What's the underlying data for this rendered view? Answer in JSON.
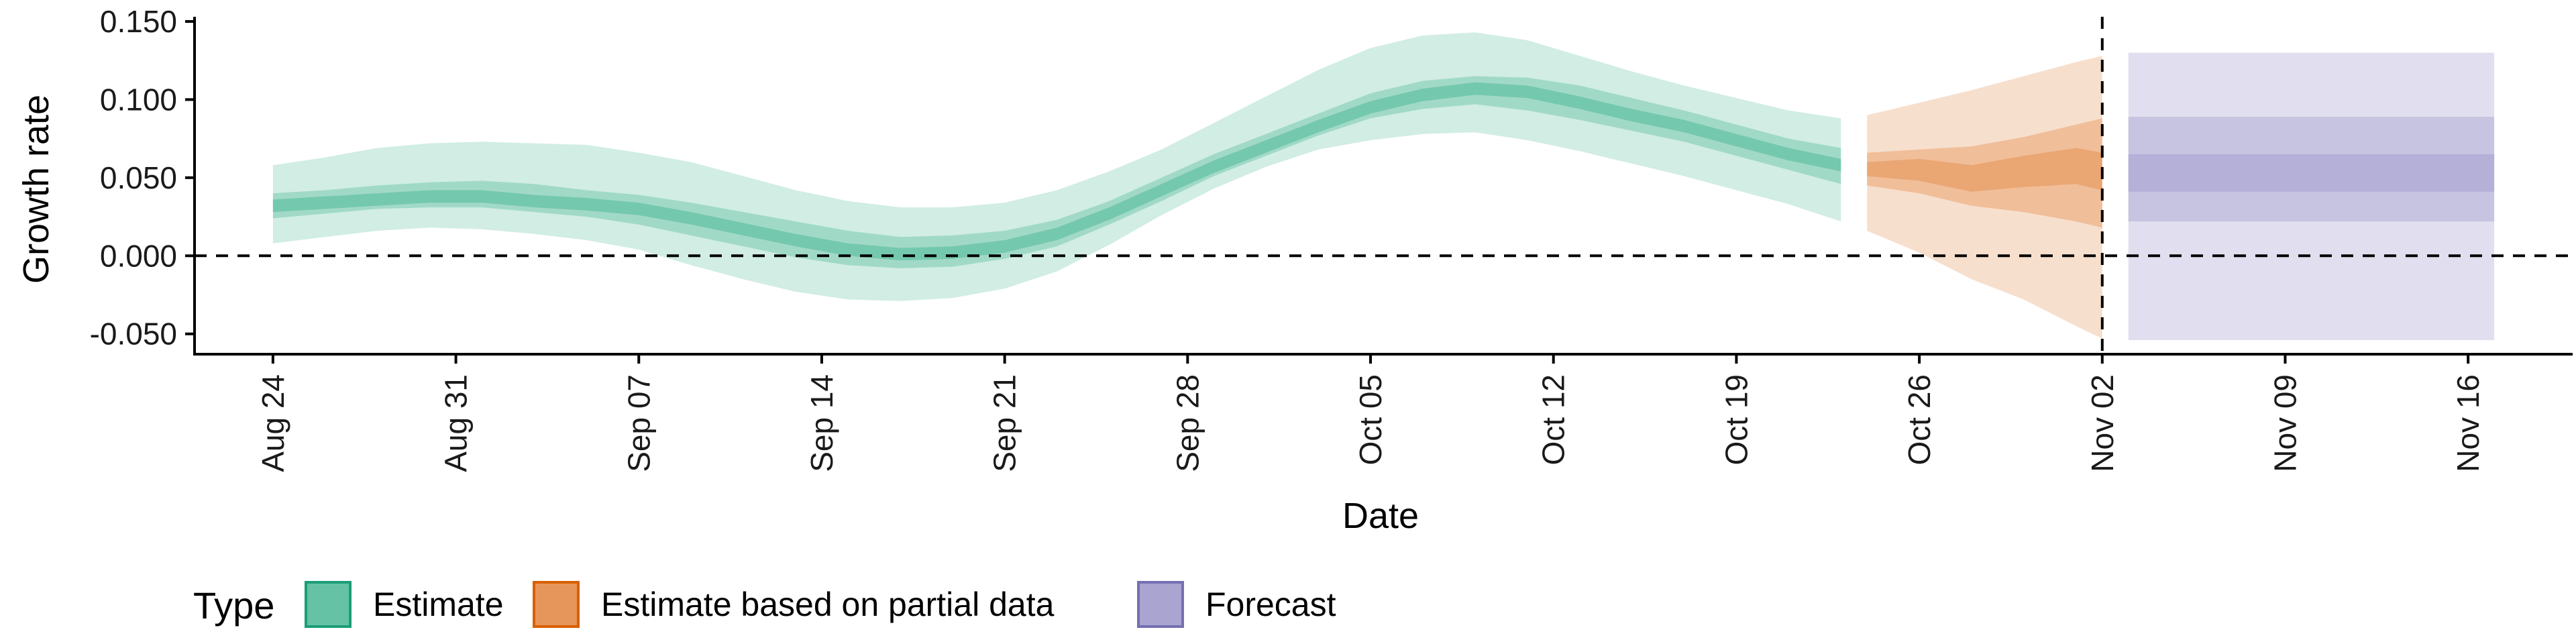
{
  "chart_data": {
    "type": "area",
    "xlabel": "Date",
    "ylabel": "Growth rate",
    "ylim": [
      -0.063,
      0.153
    ],
    "xlim": [
      "2020-08-21",
      "2020-11-20"
    ],
    "y_ticks": [
      "0.150",
      "0.100",
      "0.050",
      "0.000",
      "-0.050"
    ],
    "y_tick_values": [
      0.15,
      0.1,
      0.05,
      0.0,
      -0.05
    ],
    "x_ticks": [
      "Aug 24",
      "Aug 31",
      "Sep 07",
      "Sep 14",
      "Sep 21",
      "Sep 28",
      "Oct 05",
      "Oct 12",
      "Oct 19",
      "Oct 26",
      "Nov 02",
      "Nov 09",
      "Nov 16"
    ],
    "x_tick_dates": [
      "2020-08-24",
      "2020-08-31",
      "2020-09-07",
      "2020-09-14",
      "2020-09-21",
      "2020-09-28",
      "2020-10-05",
      "2020-10-12",
      "2020-10-19",
      "2020-10-26",
      "2020-11-02",
      "2020-11-09",
      "2020-11-16"
    ],
    "reference_lines": [
      {
        "axis": "y",
        "value": 0.0,
        "style": "dashed"
      },
      {
        "axis": "x",
        "value": "2020-11-02",
        "style": "dashed"
      }
    ],
    "grid": false,
    "legend": {
      "title": "Type",
      "position": "bottom-left",
      "entries": [
        "Estimate",
        "Estimate based on partial data",
        "Forecast"
      ]
    },
    "series": [
      {
        "name": "Estimate",
        "color": "#1b9e77",
        "fill": "#66c2a5",
        "dates": [
          "2020-08-24",
          "2020-08-26",
          "2020-08-28",
          "2020-08-30",
          "2020-09-01",
          "2020-09-03",
          "2020-09-05",
          "2020-09-07",
          "2020-09-09",
          "2020-09-11",
          "2020-09-13",
          "2020-09-15",
          "2020-09-17",
          "2020-09-19",
          "2020-09-21",
          "2020-09-23",
          "2020-09-25",
          "2020-09-27",
          "2020-09-29",
          "2020-10-01",
          "2020-10-03",
          "2020-10-05",
          "2020-10-07",
          "2020-10-09",
          "2020-10-11",
          "2020-10-13",
          "2020-10-15",
          "2020-10-17",
          "2020-10-19",
          "2020-10-21",
          "2020-10-23"
        ],
        "median": [
          0.032,
          0.034,
          0.036,
          0.038,
          0.038,
          0.035,
          0.033,
          0.03,
          0.024,
          0.017,
          0.01,
          0.004,
          0.001,
          0.002,
          0.006,
          0.014,
          0.027,
          0.042,
          0.057,
          0.07,
          0.083,
          0.095,
          0.103,
          0.107,
          0.105,
          0.098,
          0.09,
          0.083,
          0.074,
          0.065,
          0.058
        ],
        "lower_90": [
          0.008,
          0.012,
          0.016,
          0.018,
          0.017,
          0.014,
          0.01,
          0.004,
          -0.006,
          -0.015,
          -0.023,
          -0.028,
          -0.029,
          -0.027,
          -0.021,
          -0.01,
          0.007,
          0.026,
          0.043,
          0.057,
          0.068,
          0.074,
          0.078,
          0.079,
          0.074,
          0.067,
          0.059,
          0.051,
          0.042,
          0.033,
          0.022
        ],
        "upper_90": [
          0.058,
          0.063,
          0.069,
          0.072,
          0.073,
          0.072,
          0.071,
          0.066,
          0.06,
          0.051,
          0.042,
          0.035,
          0.031,
          0.031,
          0.034,
          0.042,
          0.054,
          0.068,
          0.085,
          0.102,
          0.119,
          0.133,
          0.141,
          0.143,
          0.138,
          0.128,
          0.118,
          0.109,
          0.101,
          0.093,
          0.088
        ],
        "lower_50": [
          0.024,
          0.027,
          0.03,
          0.031,
          0.031,
          0.028,
          0.025,
          0.02,
          0.013,
          0.006,
          -0.001,
          -0.006,
          -0.008,
          -0.007,
          -0.002,
          0.006,
          0.02,
          0.035,
          0.051,
          0.064,
          0.077,
          0.088,
          0.094,
          0.097,
          0.093,
          0.087,
          0.08,
          0.073,
          0.064,
          0.055,
          0.046
        ],
        "upper_50": [
          0.04,
          0.042,
          0.045,
          0.047,
          0.048,
          0.046,
          0.042,
          0.039,
          0.034,
          0.028,
          0.022,
          0.016,
          0.012,
          0.013,
          0.016,
          0.023,
          0.035,
          0.05,
          0.065,
          0.078,
          0.091,
          0.104,
          0.112,
          0.115,
          0.114,
          0.109,
          0.101,
          0.093,
          0.084,
          0.075,
          0.069
        ]
      },
      {
        "name": "Estimate based on partial data",
        "color": "#d95f02",
        "fill": "#e6965a",
        "dates": [
          "2020-10-24",
          "2020-10-26",
          "2020-10-28",
          "2020-10-30",
          "2020-11-01",
          "2020-11-02"
        ],
        "median": [
          0.056,
          0.055,
          0.047,
          0.053,
          0.058,
          0.054
        ],
        "lower_90": [
          0.016,
          0.002,
          -0.015,
          -0.028,
          -0.045,
          -0.053
        ],
        "upper_90": [
          0.09,
          0.098,
          0.106,
          0.115,
          0.124,
          0.128
        ],
        "lower_50": [
          0.045,
          0.04,
          0.032,
          0.028,
          0.022,
          0.018
        ],
        "upper_50": [
          0.066,
          0.068,
          0.07,
          0.076,
          0.084,
          0.088
        ],
        "lower_20": [
          0.051,
          0.048,
          0.041,
          0.044,
          0.046,
          0.042
        ],
        "upper_20": [
          0.06,
          0.062,
          0.058,
          0.064,
          0.069,
          0.066
        ]
      },
      {
        "name": "Forecast",
        "color": "#7570b3",
        "fill": "#a9a4d0",
        "dates": [
          "2020-11-03",
          "2020-11-17"
        ],
        "median": [
          0.053,
          0.053
        ],
        "lower_90": [
          -0.054,
          -0.054
        ],
        "upper_90": [
          0.13,
          0.13
        ],
        "lower_50": [
          0.022,
          0.022
        ],
        "upper_50": [
          0.089,
          0.089
        ],
        "lower_20": [
          0.041,
          0.041
        ],
        "upper_20": [
          0.065,
          0.065
        ]
      }
    ]
  }
}
